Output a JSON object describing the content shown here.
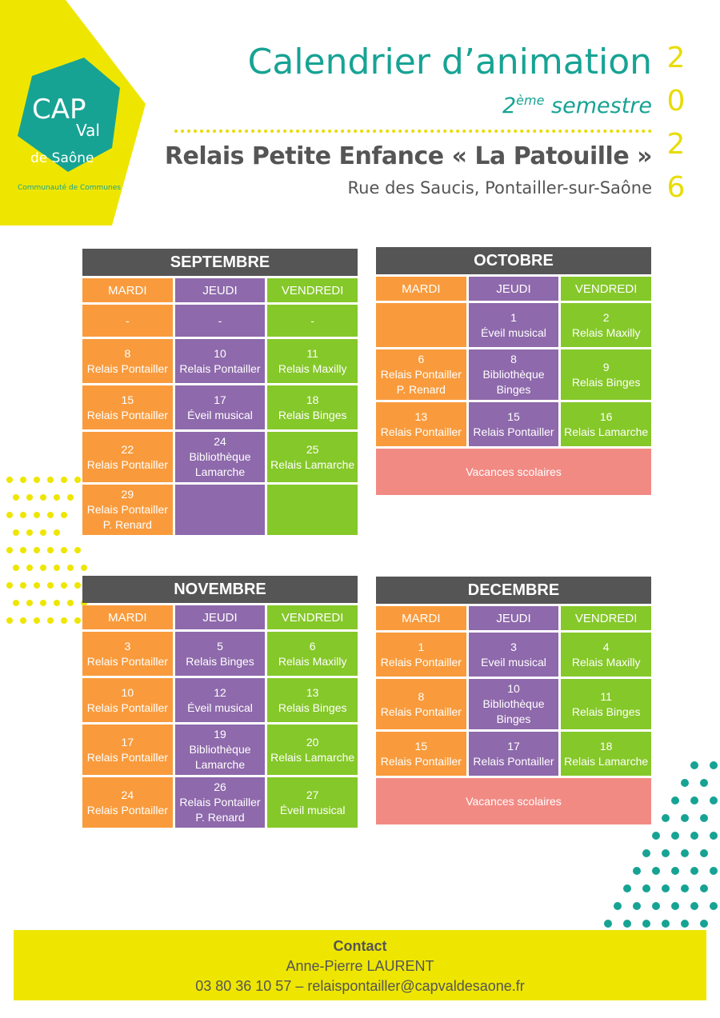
{
  "header": {
    "title": "Calendrier d’animation",
    "semester_num": "2",
    "semester_sup": "ème",
    "semester_word": "semestre",
    "year_digits": [
      "2",
      "0",
      "2",
      "6"
    ],
    "place": "Relais Petite Enfance « La Patouille »",
    "address": "Rue des Saucis, Pontailler-sur-Saône"
  },
  "logo": {
    "lines": [
      "CAP",
      "Val",
      "de Saône"
    ],
    "tagline": "Communauté de Communes"
  },
  "calendars": [
    {
      "month": "SEPTEMBRE",
      "days": [
        "MARDI",
        "JEUDI",
        "VENDREDI"
      ],
      "rows": [
        [
          [
            "-"
          ],
          [
            "-"
          ],
          [
            "-"
          ]
        ],
        [
          [
            "8",
            "Relais Pontailler"
          ],
          [
            "10",
            "Relais Pontailler"
          ],
          [
            "11",
            "Relais Maxilly"
          ]
        ],
        [
          [
            "15",
            "Relais Pontailler"
          ],
          [
            "17",
            "Éveil musical"
          ],
          [
            "18",
            "Relais Binges"
          ]
        ],
        [
          [
            "22",
            "Relais Pontailler"
          ],
          [
            "24",
            "Bibliothèque",
            "Lamarche"
          ],
          [
            "25",
            "Relais Lamarche"
          ]
        ],
        [
          [
            "29",
            "Relais Pontailler",
            "P. Renard"
          ],
          null,
          null
        ]
      ]
    },
    {
      "month": "OCTOBRE",
      "days": [
        "MARDI",
        "JEUDI",
        "VENDREDI"
      ],
      "rows": [
        [
          null,
          [
            "1",
            "Éveil musical"
          ],
          [
            "2",
            "Relais Maxilly"
          ]
        ],
        [
          [
            "6",
            "Relais Pontailler",
            "P. Renard"
          ],
          [
            "8",
            "Bibliothèque",
            "Binges"
          ],
          [
            "9",
            "Relais Binges"
          ]
        ],
        [
          [
            "13",
            "Relais Pontailler"
          ],
          [
            "15",
            "Relais Pontailler"
          ],
          [
            "16",
            "Relais Lamarche"
          ]
        ]
      ],
      "banner": "Vacances scolaires"
    },
    {
      "month": "NOVEMBRE",
      "days": [
        "MARDI",
        "JEUDI",
        "VENDREDI"
      ],
      "rows": [
        [
          [
            "3",
            "Relais Pontailler"
          ],
          [
            "5",
            "Relais Binges"
          ],
          [
            "6",
            "Relais Maxilly"
          ]
        ],
        [
          [
            "10",
            "Relais Pontailler"
          ],
          [
            "12",
            "Éveil musical"
          ],
          [
            "13",
            "Relais Binges"
          ]
        ],
        [
          [
            "17",
            "Relais Pontailler"
          ],
          [
            "19",
            "Bibliothèque",
            "Lamarche"
          ],
          [
            "20",
            "Relais Lamarche"
          ]
        ],
        [
          [
            "24",
            "Relais Pontailler"
          ],
          [
            "26",
            "Relais Pontailler",
            "P. Renard"
          ],
          [
            "27",
            "Éveil musical"
          ]
        ]
      ]
    },
    {
      "month": "DECEMBRE",
      "days": [
        "MARDI",
        "JEUDI",
        "VENDREDI"
      ],
      "rows": [
        [
          [
            "1",
            "Relais Pontailler"
          ],
          [
            "3",
            "Eveil musical"
          ],
          [
            "4",
            "Relais Maxilly"
          ]
        ],
        [
          [
            "8",
            "Relais Pontailler"
          ],
          [
            "10",
            "Bibliothèque",
            "Binges"
          ],
          [
            "11",
            "Relais Binges"
          ]
        ],
        [
          [
            "15",
            "Relais Pontailler"
          ],
          [
            "17",
            "Relais Pontailler"
          ],
          [
            "18",
            "Relais Lamarche"
          ]
        ]
      ],
      "banner": "Vacances scolaires"
    }
  ],
  "contact": {
    "label": "Contact",
    "name": "Anne-Pierre LAURENT",
    "details": "03 80 36 10 57 – relaispontailler@capvaldesaone.fr"
  }
}
